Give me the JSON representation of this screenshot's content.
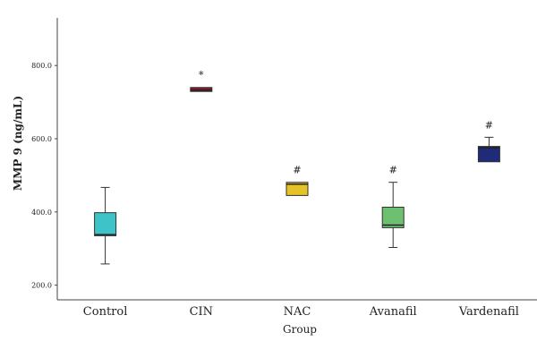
{
  "chart_data": {
    "type": "boxplot",
    "xlabel": "Group",
    "ylabel": "MMP 9 (ng/mL)",
    "ylim": [
      160,
      930
    ],
    "yticks": [
      200,
      400,
      600,
      800
    ],
    "ytick_labels": [
      "200.0",
      "400.0",
      "600.0",
      "800.0"
    ],
    "grid": false,
    "categories": [
      "Control",
      "CIN",
      "NAC",
      "Avanafil",
      "Vardenafil"
    ],
    "boxes": [
      {
        "name": "Control",
        "whisker_low": 258,
        "q1": 335,
        "median": 338,
        "q3": 398,
        "whisker_high": 467,
        "color": "#3ec3c8",
        "annotation": ""
      },
      {
        "name": "CIN",
        "whisker_low": 729,
        "q1": 729,
        "median": 733,
        "q3": 740,
        "whisker_high": 740,
        "color": "#8b1a2b",
        "annotation": "*"
      },
      {
        "name": "NAC",
        "whisker_low": 445,
        "q1": 445,
        "median": 476,
        "q3": 481,
        "whisker_high": 481,
        "color": "#e6c229",
        "annotation": "#"
      },
      {
        "name": "Avanafil",
        "whisker_low": 303,
        "q1": 357,
        "median": 364,
        "q3": 413,
        "whisker_high": 481,
        "color": "#6cc070",
        "annotation": "#"
      },
      {
        "name": "Vardenafil",
        "whisker_low": 537,
        "q1": 537,
        "median": 575,
        "q3": 579,
        "whisker_high": 604,
        "color": "#1f2a78",
        "annotation": "#"
      }
    ]
  }
}
